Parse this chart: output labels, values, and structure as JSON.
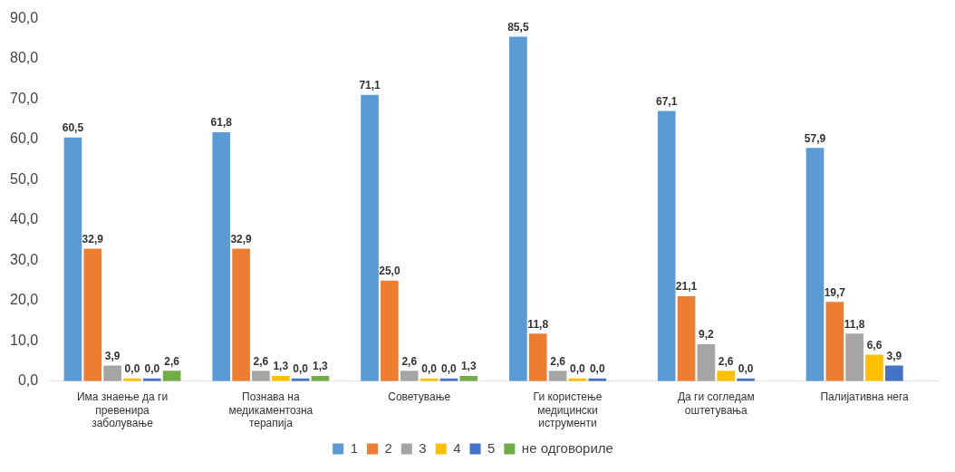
{
  "chart_data": {
    "type": "bar",
    "categories": [
      "Има знаење да ги превенира заболување",
      "Познава на медикаментозна терапија",
      "Советување",
      "Ги користење медицински иструменти",
      "Да ги согледам оштетувања",
      "Палијативна нега"
    ],
    "series": [
      {
        "name": "1",
        "color": "#5b9bd5",
        "values": [
          60.5,
          61.8,
          71.1,
          85.5,
          67.1,
          57.9
        ],
        "value_labels": [
          "60,5",
          "61,8",
          "71,1",
          "85,5",
          "67,1",
          "57,9"
        ]
      },
      {
        "name": "2",
        "color": "#ed7d31",
        "values": [
          32.9,
          32.9,
          25.0,
          11.8,
          21.1,
          19.7
        ],
        "value_labels": [
          "32,9",
          "32,9",
          "25,0",
          "11,8",
          "21,1",
          "19,7"
        ]
      },
      {
        "name": "3",
        "color": "#a5a5a5",
        "values": [
          3.9,
          2.6,
          2.6,
          2.6,
          9.2,
          11.8
        ],
        "value_labels": [
          "3,9",
          "2,6",
          "2,6",
          "2,6",
          "9,2",
          "11,8"
        ]
      },
      {
        "name": "4",
        "color": "#ffc000",
        "values": [
          0.0,
          1.3,
          0.0,
          0.0,
          2.6,
          6.6
        ],
        "value_labels": [
          "0,0",
          "1,3",
          "0,0",
          "0,0",
          "2,6",
          "6,6"
        ]
      },
      {
        "name": "5",
        "color": "#4472c4",
        "values": [
          0.0,
          0.0,
          0.0,
          0.0,
          0.0,
          3.9
        ],
        "value_labels": [
          "0,0",
          "0,0",
          "0,0",
          "0,0",
          "0,0",
          "3,9"
        ]
      },
      {
        "name": "не одговориле",
        "color": "#70ad47",
        "values": [
          2.6,
          1.3,
          1.3,
          null,
          null,
          null
        ],
        "value_labels": [
          "2,6",
          "1,3",
          "1,3",
          null,
          null,
          null
        ]
      }
    ],
    "ylim": [
      0,
      90
    ],
    "yticks": [
      {
        "value": 0,
        "label": "0,0"
      },
      {
        "value": 10,
        "label": "10,0"
      },
      {
        "value": 20,
        "label": "20,0"
      },
      {
        "value": 30,
        "label": "30,0"
      },
      {
        "value": 40,
        "label": "40,0"
      },
      {
        "value": 50,
        "label": "50,0"
      },
      {
        "value": 60,
        "label": "60,0"
      },
      {
        "value": 70,
        "label": "70,0"
      },
      {
        "value": 80,
        "label": "80,0"
      },
      {
        "value": 90,
        "label": "90,0"
      }
    ],
    "grid": false,
    "legend": "bottom"
  }
}
